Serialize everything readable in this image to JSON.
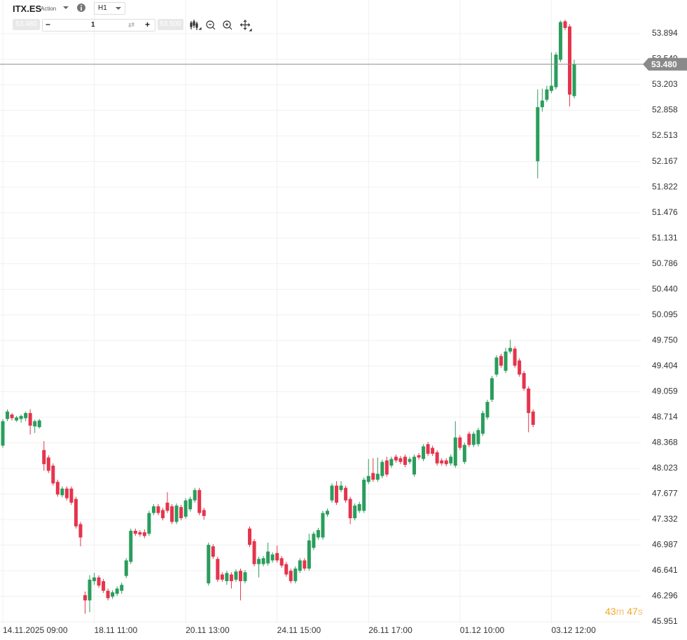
{
  "toolbar": {
    "symbol": "ITX.ES",
    "kind": "Action",
    "timeframe": "H1",
    "bid": "53.480",
    "quantity": "1",
    "ask": "53.500"
  },
  "timer": {
    "minutes": "43",
    "m": "m",
    "seconds": "47",
    "s": "s"
  },
  "chart_data": {
    "type": "candlestick",
    "up_color": "#2a9d5c",
    "down_color": "#e5344c",
    "grid": true,
    "ylim": [
      45.951,
      54.253
    ],
    "yticks": [
      45.951,
      46.296,
      46.641,
      46.987,
      47.332,
      47.677,
      48.023,
      48.368,
      48.714,
      49.059,
      49.404,
      {
        "value": 49.75,
        "label": "49.750"
      },
      50.095,
      {
        "value": 50.44,
        "label": "50.440"
      },
      50.786,
      51.131,
      51.476,
      51.822,
      52.167,
      52.513,
      52.858,
      53.203,
      53.549,
      53.894
    ],
    "current_price": {
      "value": 53.48,
      "label": "53.480"
    },
    "categories": [
      "14.11.2025 09:00",
      null,
      null,
      null,
      null,
      null,
      null,
      null,
      null,
      null,
      null,
      null,
      null,
      null,
      null,
      null,
      null,
      null,
      null,
      null,
      "18.11 11:00",
      null,
      null,
      null,
      null,
      null,
      null,
      null,
      null,
      null,
      null,
      null,
      null,
      null,
      null,
      null,
      null,
      null,
      null,
      null,
      "20.11 13:00",
      null,
      null,
      null,
      null,
      null,
      null,
      null,
      null,
      null,
      null,
      null,
      null,
      null,
      null,
      null,
      null,
      null,
      null,
      null,
      "24.11 15:00",
      null,
      null,
      null,
      null,
      null,
      null,
      null,
      null,
      null,
      null,
      null,
      null,
      null,
      null,
      null,
      null,
      null,
      null,
      null,
      "26.11 17:00",
      null,
      null,
      null,
      null,
      null,
      null,
      null,
      null,
      null,
      null,
      null,
      null,
      null,
      null,
      null,
      null,
      null,
      null,
      null,
      "01.12 10:00",
      null,
      null,
      null,
      null,
      null,
      null,
      null,
      null,
      null,
      null,
      null,
      null,
      null,
      null,
      null,
      null,
      null,
      null,
      null,
      "03.12 12:00",
      null,
      null,
      null,
      null,
      null
    ],
    "open": [
      48.33,
      48.69,
      48.75,
      48.67,
      48.69,
      48.7,
      48.77,
      48.59,
      48.58,
      48.27,
      48.17,
      48.06,
      47.84,
      47.66,
      47.75,
      47.75,
      47.61,
      47.27,
      46.31,
      46.24,
      46.5,
      46.55,
      46.5,
      46.37,
      46.29,
      46.33,
      46.37,
      46.57,
      46.76,
      47.18,
      47.16,
      47.16,
      47.14,
      47.42,
      47.51,
      47.46,
      47.56,
      47.51,
      47.3,
      47.5,
      47.37,
      47.47,
      47.59,
      47.73,
      47.46,
      46.47,
      46.97,
      46.8,
      46.59,
      46.5,
      46.59,
      46.52,
      46.64,
      46.5,
      47.21,
      47.04,
      46.73,
      46.73,
      46.74,
      46.78,
      46.88,
      46.81,
      46.73,
      46.64,
      46.5,
      46.64,
      46.78,
      46.67,
      46.95,
      47.09,
      47.09,
      47.4,
      47.59,
      47.79,
      47.73,
      47.76,
      47.61,
      47.35,
      47.45,
      47.45,
      47.84,
      47.96,
      47.87,
      47.92,
      48.13,
      48.06,
      48.18,
      48.16,
      48.18,
      48.11,
      47.94,
      48.2,
      48.15,
      48.35,
      48.3,
      48.24,
      48.13,
      48.13,
      48.09,
      48.06,
      48.44,
      48.11,
      48.49,
      48.34,
      48.35,
      48.49,
      48.71,
      48.95,
      49.29,
      49.54,
      49.34,
      49.6,
      49.64,
      49.48,
      49.31,
      49.1,
      48.79,
      52.17,
      52.9,
      53.0,
      53.12,
      53.17,
      53.54,
      54.06,
      53.99,
      53.05
    ],
    "high": [
      48.69,
      48.82,
      48.77,
      48.73,
      48.75,
      48.79,
      48.82,
      48.68,
      48.69,
      48.39,
      48.2,
      48.09,
      47.87,
      47.78,
      47.78,
      47.78,
      47.64,
      47.3,
      46.36,
      46.58,
      46.61,
      46.58,
      46.53,
      46.4,
      46.38,
      46.43,
      46.48,
      46.81,
      47.21,
      47.21,
      47.19,
      47.2,
      47.45,
      47.54,
      47.54,
      47.49,
      47.7,
      47.54,
      47.55,
      47.53,
      47.62,
      47.64,
      47.76,
      47.76,
      47.49,
      47.02,
      47.0,
      46.83,
      46.62,
      46.64,
      46.62,
      46.66,
      46.67,
      46.65,
      47.24,
      47.07,
      46.83,
      46.84,
      47.02,
      46.89,
      46.98,
      46.84,
      46.76,
      46.67,
      46.7,
      46.81,
      46.81,
      47.14,
      47.17,
      47.22,
      47.45,
      47.48,
      47.82,
      47.85,
      47.85,
      47.79,
      47.64,
      47.55,
      47.57,
      47.9,
      48.15,
      48.16,
      48.17,
      48.14,
      48.18,
      48.18,
      48.21,
      48.19,
      48.21,
      48.18,
      48.21,
      48.23,
      48.35,
      48.38,
      48.33,
      48.27,
      48.16,
      48.16,
      48.21,
      48.66,
      48.47,
      48.37,
      48.52,
      48.52,
      48.57,
      48.8,
      48.95,
      49.27,
      49.55,
      49.57,
      49.65,
      49.76,
      49.67,
      49.51,
      49.34,
      49.13,
      48.82,
      53.14,
      53.15,
      53.19,
      53.64,
      53.64,
      54.07,
      54.08,
      54.02,
      53.54
    ],
    "low": [
      48.3,
      48.66,
      48.67,
      48.65,
      48.64,
      48.66,
      48.48,
      48.5,
      48.56,
      47.99,
      47.96,
      47.79,
      47.64,
      47.63,
      47.59,
      47.53,
      47.21,
      46.97,
      46.06,
      46.08,
      46.45,
      46.41,
      46.34,
      46.24,
      46.26,
      46.3,
      46.33,
      46.54,
      46.73,
      47.11,
      47.1,
      47.08,
      47.11,
      47.39,
      47.39,
      47.32,
      47.42,
      47.27,
      47.27,
      47.32,
      47.34,
      47.44,
      47.56,
      47.39,
      47.33,
      46.44,
      46.8,
      46.49,
      46.49,
      46.45,
      46.4,
      46.49,
      46.24,
      46.47,
      46.96,
      46.7,
      46.55,
      46.7,
      46.71,
      46.75,
      46.75,
      46.68,
      46.56,
      46.47,
      46.47,
      46.61,
      46.64,
      46.64,
      46.92,
      47.06,
      47.06,
      47.37,
      47.56,
      47.53,
      47.7,
      47.56,
      47.27,
      47.32,
      47.42,
      47.42,
      47.81,
      47.84,
      47.84,
      47.89,
      47.91,
      48.03,
      48.1,
      48.08,
      48.04,
      48.08,
      47.91,
      48.14,
      48.12,
      48.19,
      48.19,
      48.06,
      48.06,
      48.05,
      48.06,
      48.03,
      48.27,
      48.08,
      48.31,
      48.31,
      48.32,
      48.46,
      48.68,
      48.92,
      49.26,
      49.38,
      49.31,
      49.57,
      49.38,
      49.26,
      49.07,
      48.51,
      48.58,
      51.94,
      52.84,
      52.97,
      53.09,
      53.14,
      53.51,
      53.94,
      52.91,
      53.02
    ],
    "close": [
      48.66,
      48.79,
      48.7,
      48.71,
      48.73,
      48.77,
      48.6,
      48.66,
      48.67,
      48.08,
      47.99,
      47.82,
      47.67,
      47.75,
      47.62,
      47.56,
      47.24,
      47.09,
      46.24,
      46.52,
      46.55,
      46.44,
      46.37,
      46.27,
      46.35,
      46.4,
      46.45,
      46.78,
      47.18,
      47.14,
      47.13,
      47.11,
      47.42,
      47.51,
      47.42,
      47.35,
      47.45,
      47.3,
      47.52,
      47.35,
      47.59,
      47.61,
      47.73,
      47.42,
      47.38,
      46.99,
      46.83,
      46.52,
      46.52,
      46.61,
      46.5,
      46.63,
      46.5,
      46.62,
      46.99,
      46.73,
      46.8,
      46.81,
      46.9,
      46.86,
      46.78,
      46.71,
      46.59,
      46.5,
      46.67,
      46.78,
      46.67,
      47.05,
      47.14,
      47.19,
      47.42,
      47.45,
      47.79,
      47.56,
      47.79,
      47.59,
      47.35,
      47.52,
      47.54,
      47.87,
      47.92,
      47.87,
      47.95,
      48.11,
      47.94,
      48.15,
      48.13,
      48.11,
      48.07,
      48.15,
      48.18,
      48.17,
      48.32,
      48.22,
      48.22,
      48.09,
      48.09,
      48.08,
      48.18,
      48.44,
      48.3,
      48.34,
      48.34,
      48.49,
      48.54,
      48.77,
      48.92,
      49.24,
      49.52,
      49.41,
      49.6,
      49.65,
      49.41,
      49.29,
      49.1,
      48.77,
      48.61,
      52.9,
      52.99,
      53.14,
      53.19,
      53.61,
      54.05,
      53.97,
      53.07,
      53.48
    ]
  }
}
